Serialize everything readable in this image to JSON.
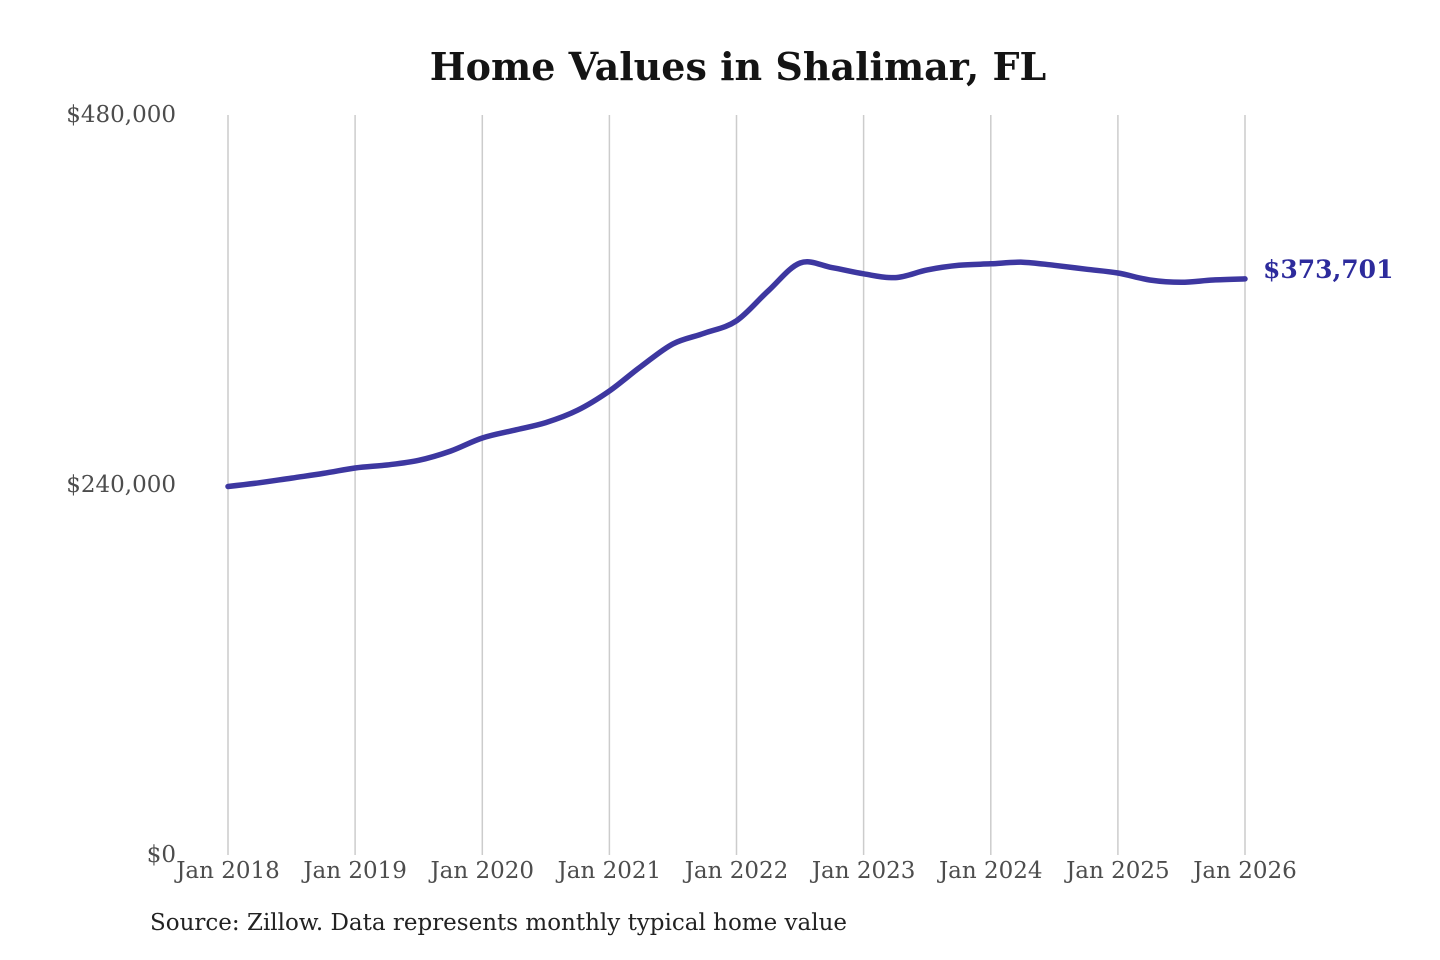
{
  "chart_data": {
    "type": "line",
    "title": "Home Values in Shalimar, FL",
    "xlabel": "",
    "ylabel": "",
    "ylim": [
      0,
      480000
    ],
    "xlim_years": [
      2018.0,
      2026.0
    ],
    "grid": "vertical-only",
    "legend": "none",
    "y_ticks": [
      {
        "value": 0,
        "label": "$0"
      },
      {
        "value": 240000,
        "label": "$240,000"
      },
      {
        "value": 480000,
        "label": "$480,000"
      }
    ],
    "x_ticks": [
      {
        "t": 2018.0,
        "label": "Jan 2018"
      },
      {
        "t": 2019.0,
        "label": "Jan 2019"
      },
      {
        "t": 2020.0,
        "label": "Jan 2020"
      },
      {
        "t": 2021.0,
        "label": "Jan 2021"
      },
      {
        "t": 2022.0,
        "label": "Jan 2022"
      },
      {
        "t": 2023.0,
        "label": "Jan 2023"
      },
      {
        "t": 2024.0,
        "label": "Jan 2024"
      },
      {
        "t": 2025.0,
        "label": "Jan 2025"
      },
      {
        "t": 2026.0,
        "label": "Jan 2026"
      }
    ],
    "series": [
      {
        "name": "Monthly typical home value",
        "points": [
          [
            "2018-01",
            239000
          ],
          [
            "2018-04",
            241500
          ],
          [
            "2018-07",
            244500
          ],
          [
            "2018-10",
            247500
          ],
          [
            "2019-01",
            251000
          ],
          [
            "2019-04",
            253000
          ],
          [
            "2019-07",
            256000
          ],
          [
            "2019-10",
            262000
          ],
          [
            "2020-01",
            270500
          ],
          [
            "2020-04",
            275500
          ],
          [
            "2020-07",
            280500
          ],
          [
            "2020-10",
            288500
          ],
          [
            "2021-01",
            301000
          ],
          [
            "2021-04",
            317000
          ],
          [
            "2021-07",
            331500
          ],
          [
            "2021-10",
            338500
          ],
          [
            "2022-01",
            346500
          ],
          [
            "2022-04",
            366000
          ],
          [
            "2022-07",
            384000
          ],
          [
            "2022-10",
            381000
          ],
          [
            "2023-01",
            377000
          ],
          [
            "2023-04",
            374500
          ],
          [
            "2023-07",
            379500
          ],
          [
            "2023-10",
            382500
          ],
          [
            "2024-01",
            383500
          ],
          [
            "2024-04",
            384500
          ],
          [
            "2024-07",
            382500
          ],
          [
            "2024-10",
            380000
          ],
          [
            "2025-01",
            377500
          ],
          [
            "2025-04",
            373000
          ],
          [
            "2025-07",
            371500
          ],
          [
            "2025-10",
            373000
          ],
          [
            "2026-01",
            373701
          ]
        ]
      }
    ],
    "end_annotation": {
      "text": "$373,701",
      "color": "#2d2b9c"
    },
    "source": "Source: Zillow. Data represents monthly typical home value",
    "colors": {
      "line": "#3d37a0",
      "gridline": "#cccccc",
      "tick_text": "#4d4d4d",
      "title_text": "#141414",
      "source_text": "#222222"
    }
  }
}
